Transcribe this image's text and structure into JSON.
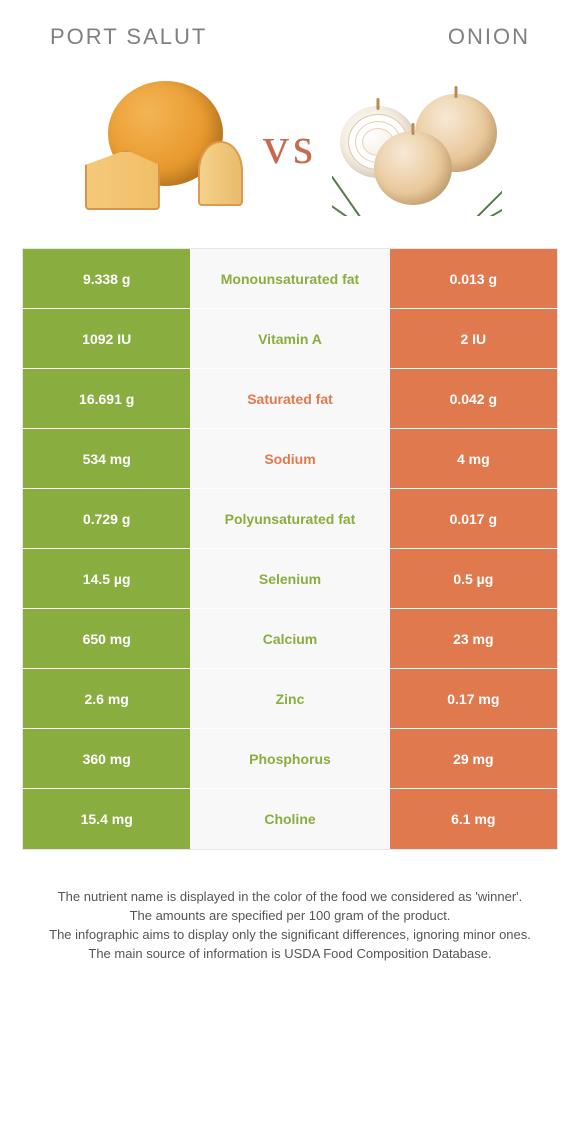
{
  "header": {
    "left_title": "Port Salut",
    "right_title": "Onion"
  },
  "vs_text": "vs",
  "colors": {
    "left": "#8aad3f",
    "right": "#e1794e",
    "mid_bg": "#f8f8f8",
    "title": "#808080",
    "vs": "#c76a4d"
  },
  "rows": [
    {
      "label": "Monounsaturated fat",
      "left": "9.338 g",
      "right": "0.013 g",
      "winner": "left"
    },
    {
      "label": "Vitamin A",
      "left": "1092 IU",
      "right": "2 IU",
      "winner": "left"
    },
    {
      "label": "Saturated fat",
      "left": "16.691 g",
      "right": "0.042 g",
      "winner": "right"
    },
    {
      "label": "Sodium",
      "left": "534 mg",
      "right": "4 mg",
      "winner": "right"
    },
    {
      "label": "Polyunsaturated fat",
      "left": "0.729 g",
      "right": "0.017 g",
      "winner": "left"
    },
    {
      "label": "Selenium",
      "left": "14.5 µg",
      "right": "0.5 µg",
      "winner": "left"
    },
    {
      "label": "Calcium",
      "left": "650 mg",
      "right": "23 mg",
      "winner": "left"
    },
    {
      "label": "Zinc",
      "left": "2.6 mg",
      "right": "0.17 mg",
      "winner": "left"
    },
    {
      "label": "Phosphorus",
      "left": "360 mg",
      "right": "29 mg",
      "winner": "left"
    },
    {
      "label": "Choline",
      "left": "15.4 mg",
      "right": "6.1 mg",
      "winner": "left"
    }
  ],
  "footer_lines": [
    "The nutrient name is displayed in the color of the food we considered as 'winner'.",
    "The amounts are specified per 100 gram of the product.",
    "The infographic aims to display only the significant differences, ignoring minor ones.",
    "The main source of information is USDA Food Composition Database."
  ]
}
